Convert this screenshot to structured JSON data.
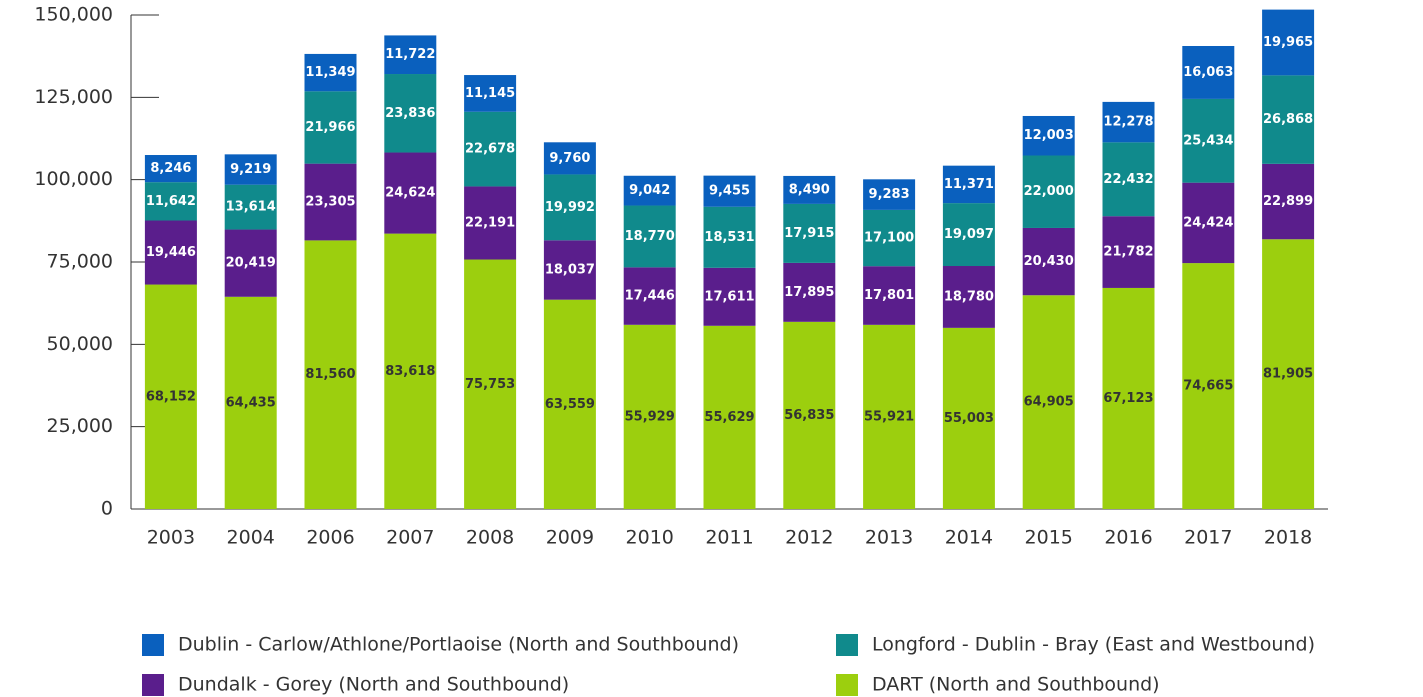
{
  "chart_data": {
    "type": "stacked_bar",
    "categories": [
      "2003",
      "2004",
      "2006",
      "2007",
      "2008",
      "2009",
      "2010",
      "2011",
      "2012",
      "2013",
      "2014",
      "2015",
      "2016",
      "2017",
      "2018"
    ],
    "series": [
      {
        "name": "DART (North and Southbound)",
        "color": "#9ccf0e",
        "values": [
          68152,
          64435,
          81560,
          83618,
          75753,
          63559,
          55929,
          55629,
          56835,
          55921,
          55003,
          64905,
          67123,
          74665,
          81905
        ],
        "value_labels": [
          "68,152",
          "64,435",
          "81,560",
          "83,618",
          "75,753",
          "63,559",
          "55,929",
          "55,629",
          "56,835",
          "55,921",
          "55,003",
          "64,905",
          "67,123",
          "74,665",
          "81,905"
        ]
      },
      {
        "name": "Dundalk - Gorey (North and Southbound)",
        "color": "#5a1e8c",
        "values": [
          19446,
          20419,
          23305,
          24624,
          22191,
          18037,
          17446,
          17611,
          17895,
          17801,
          18780,
          20430,
          21782,
          24424,
          22899
        ],
        "value_labels": [
          "19,446",
          "20,419",
          "23,305",
          "24,624",
          "22,191",
          "18,037",
          "17,446",
          "17,611",
          "17,895",
          "17,801",
          "18,780",
          "20,430",
          "21,782",
          "24,424",
          "22,899"
        ]
      },
      {
        "name": "Longford - Dublin - Bray (East and Westbound)",
        "color": "#108a8c",
        "values": [
          11642,
          13614,
          21966,
          23836,
          22678,
          19992,
          18770,
          18531,
          17915,
          17100,
          19097,
          22000,
          22432,
          25434,
          26868
        ],
        "value_labels": [
          "11,642",
          "13,614",
          "21,966",
          "23,836",
          "22,678",
          "19,992",
          "18,770",
          "18,531",
          "17,915",
          "17,100",
          "19,097",
          "22,000",
          "22,432",
          "25,434",
          "26,868"
        ]
      },
      {
        "name": "Dublin - Carlow/Athlone/Portlaoise (North and Southbound)",
        "color": "#0a60be",
        "values": [
          8246,
          9219,
          11349,
          11722,
          11145,
          9760,
          9042,
          9455,
          8490,
          9283,
          11371,
          12003,
          12278,
          16063,
          19965
        ],
        "value_labels": [
          "8,246",
          "9,219",
          "11,349",
          "11,722",
          "11,145",
          "9,760",
          "9,042",
          "9,455",
          "8,490",
          "9,283",
          "11,371",
          "12,003",
          "12,278",
          "16,063",
          "19,965"
        ]
      }
    ],
    "ylim": [
      0,
      150000
    ],
    "yticks": [
      0,
      {
        "value": 25000,
        "label": "25,000"
      },
      {
        "value": 50000,
        "label": "50,000"
      },
      {
        "value": 75000,
        "label": "75,000"
      },
      {
        "value": 100000,
        "label": "100,000"
      },
      {
        "value": 125000,
        "label": "125,000"
      },
      {
        "value": 150000,
        "label": "150,000"
      }
    ]
  }
}
